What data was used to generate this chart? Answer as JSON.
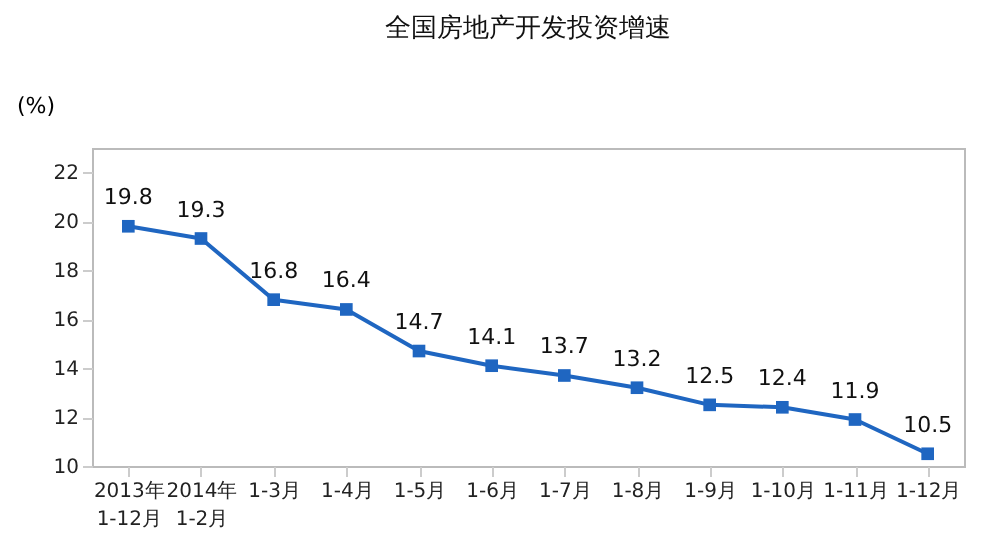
{
  "chart_data": {
    "type": "line",
    "title": "全国房地产开发投资增速",
    "ylabel": "(%)",
    "categories": [
      "2013年\n1-12月",
      "2014年\n1-2月",
      "1-3月",
      "1-4月",
      "1-5月",
      "1-6月",
      "1-7月",
      "1-8月",
      "1-9月",
      "1-10月",
      "1-11月",
      "1-12月"
    ],
    "series": [
      {
        "color": "#1f66c1",
        "values": [
          19.8,
          19.3,
          16.8,
          16.4,
          14.7,
          14.1,
          13.7,
          13.2,
          12.5,
          12.4,
          11.9,
          10.5
        ]
      }
    ],
    "ylim": [
      10,
      23
    ],
    "yticks": [
      10,
      12,
      14,
      16,
      18,
      20,
      22
    ],
    "grid": false,
    "marker": "square",
    "line_style": "solid",
    "data_labels": true
  }
}
